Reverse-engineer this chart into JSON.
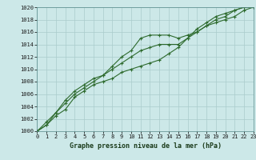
{
  "x": [
    0,
    1,
    2,
    3,
    4,
    5,
    6,
    7,
    8,
    9,
    10,
    11,
    12,
    13,
    14,
    15,
    16,
    17,
    18,
    19,
    20,
    21,
    22,
    23
  ],
  "line1": [
    1000,
    1001,
    1002.5,
    1003.5,
    1005.5,
    1006.5,
    1007.5,
    1008,
    1008.5,
    1009.5,
    1010,
    1010.5,
    1011,
    1011.5,
    1012.5,
    1013.5,
    1015,
    1016,
    1017,
    1017.5,
    1018,
    1018.5,
    1019.5,
    1020
  ],
  "line2": [
    1000,
    1001,
    1003,
    1004.5,
    1006,
    1007,
    1008,
    1009,
    1010.5,
    1012,
    1013,
    1015,
    1015.5,
    1015.5,
    1015.5,
    1015,
    1015.5,
    1016,
    1017,
    1018,
    1018.5,
    1019.5,
    1020,
    1020
  ],
  "line3": [
    1000,
    1001.5,
    1003,
    1005,
    1006.5,
    1007.5,
    1008.5,
    1009,
    1010,
    1011,
    1012,
    1013,
    1013.5,
    1014,
    1014,
    1014,
    1015,
    1016.5,
    1017.5,
    1018.5,
    1019,
    1019.5,
    1020,
    1020
  ],
  "line_color": "#2d6a2d",
  "bg_color": "#cce8e8",
  "grid_color": "#aacccc",
  "title": "Graphe pression niveau de la mer (hPa)",
  "ylim": [
    1000,
    1020
  ],
  "xlim": [
    0,
    23
  ],
  "yticks": [
    1000,
    1002,
    1004,
    1006,
    1008,
    1010,
    1012,
    1014,
    1016,
    1018,
    1020
  ],
  "xticks": [
    0,
    1,
    2,
    3,
    4,
    5,
    6,
    7,
    8,
    9,
    10,
    11,
    12,
    13,
    14,
    15,
    16,
    17,
    18,
    19,
    20,
    21,
    22,
    23
  ],
  "marker": "+",
  "markersize": 3.5,
  "linewidth": 0.8,
  "tick_fontsize": 5.0,
  "title_fontsize": 6.0
}
